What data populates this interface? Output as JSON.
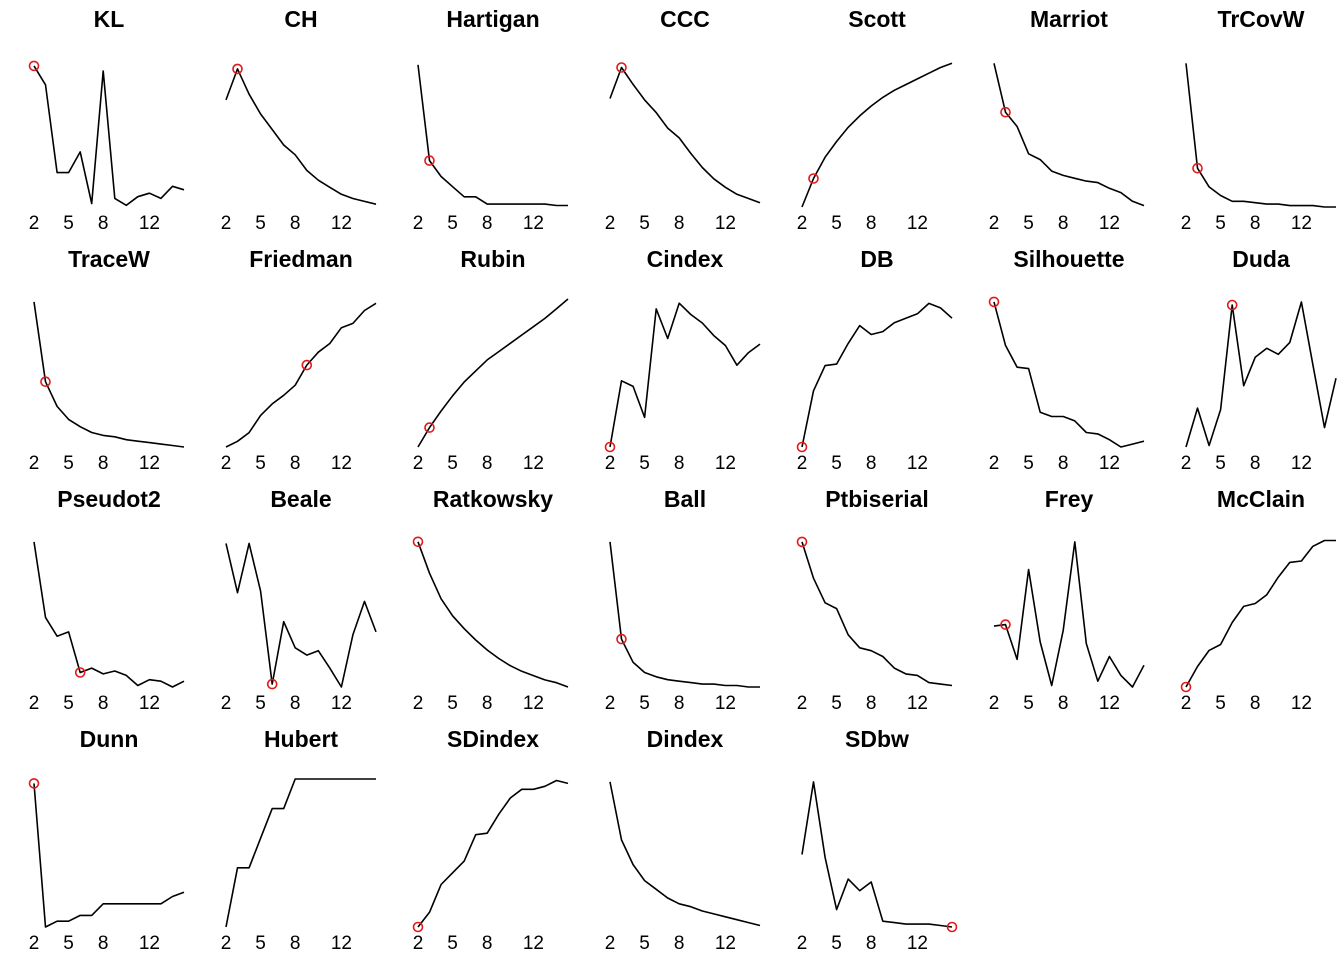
{
  "chart_data": [
    {
      "type": "line",
      "title": "KL",
      "x": [
        2,
        3,
        4,
        5,
        6,
        7,
        8,
        9,
        10,
        11,
        12,
        13,
        14,
        15
      ],
      "values": [
        0.82,
        0.71,
        0.2,
        0.2,
        0.32,
        0.02,
        0.79,
        0.05,
        0.01,
        0.06,
        0.08,
        0.05,
        0.12,
        0.1
      ],
      "ylim": [
        0,
        0.86
      ],
      "xticks": [
        2,
        5,
        8,
        12
      ],
      "highlight_x": 2,
      "highlight_color": "#e31a1c",
      "line_color": "#000000"
    },
    {
      "type": "line",
      "title": "CH",
      "x": [
        2,
        3,
        4,
        5,
        6,
        7,
        8,
        9,
        10,
        11,
        12,
        13,
        14,
        15
      ],
      "values": [
        0.76,
        0.98,
        0.8,
        0.66,
        0.55,
        0.44,
        0.37,
        0.26,
        0.19,
        0.14,
        0.09,
        0.06,
        0.04,
        0.02
      ],
      "ylim": [
        0,
        1.05
      ],
      "xticks": [
        2,
        5,
        8,
        12
      ],
      "highlight_x": 3,
      "highlight_color": "#e31a1c",
      "line_color": "#000000"
    },
    {
      "type": "line",
      "title": "Hartigan",
      "x": [
        2,
        3,
        4,
        5,
        6,
        7,
        8,
        9,
        10,
        11,
        12,
        13,
        14,
        15
      ],
      "values": [
        0.98,
        0.32,
        0.21,
        0.14,
        0.07,
        0.07,
        0.02,
        0.02,
        0.02,
        0.02,
        0.02,
        0.02,
        0.01,
        0.01
      ],
      "ylim": [
        0,
        1.02
      ],
      "xticks": [
        2,
        5,
        8,
        12
      ],
      "highlight_x": 3,
      "highlight_color": "#e31a1c",
      "line_color": "#000000"
    },
    {
      "type": "line",
      "title": "CCC",
      "x": [
        2,
        3,
        4,
        5,
        6,
        7,
        8,
        9,
        10,
        11,
        12,
        13,
        14,
        15
      ],
      "values": [
        0.77,
        0.99,
        0.87,
        0.76,
        0.67,
        0.56,
        0.49,
        0.38,
        0.28,
        0.2,
        0.14,
        0.09,
        0.06,
        0.03
      ],
      "ylim": [
        0,
        1.05
      ],
      "xticks": [
        2,
        5,
        8,
        12
      ],
      "highlight_x": 3,
      "highlight_color": "#e31a1c",
      "line_color": "#000000"
    },
    {
      "type": "line",
      "title": "Scott",
      "x": [
        2,
        3,
        4,
        5,
        6,
        7,
        8,
        9,
        10,
        11,
        12,
        13,
        14,
        15
      ],
      "values": [
        0.0,
        0.2,
        0.35,
        0.46,
        0.56,
        0.64,
        0.71,
        0.77,
        0.82,
        0.86,
        0.9,
        0.94,
        0.98,
        1.01
      ],
      "ylim": [
        0,
        1.04
      ],
      "xticks": [
        2,
        5,
        8,
        12
      ],
      "highlight_x": 3,
      "highlight_color": "#e31a1c",
      "line_color": "#000000"
    },
    {
      "type": "line",
      "title": "Marriot",
      "x": [
        2,
        3,
        4,
        5,
        6,
        7,
        8,
        9,
        10,
        11,
        12,
        13,
        14,
        15
      ],
      "values": [
        1.0,
        0.66,
        0.56,
        0.37,
        0.33,
        0.25,
        0.22,
        0.2,
        0.18,
        0.17,
        0.13,
        0.1,
        0.04,
        0.01
      ],
      "ylim": [
        0,
        1.03
      ],
      "xticks": [
        2,
        5,
        8,
        12
      ],
      "highlight_x": 3,
      "highlight_color": "#e31a1c",
      "line_color": "#000000"
    },
    {
      "type": "line",
      "title": "TrCovW",
      "x": [
        2,
        3,
        4,
        5,
        6,
        7,
        8,
        9,
        10,
        11,
        12,
        13,
        14,
        15
      ],
      "values": [
        1.0,
        0.27,
        0.14,
        0.08,
        0.04,
        0.04,
        0.03,
        0.02,
        0.02,
        0.01,
        0.01,
        0.01,
        0.0,
        0.0
      ],
      "ylim": [
        0,
        1.03
      ],
      "xticks": [
        2,
        5,
        8,
        12
      ],
      "highlight_x": 3,
      "highlight_color": "#e31a1c",
      "line_color": "#000000"
    },
    {
      "type": "line",
      "title": "TraceW",
      "x": [
        2,
        3,
        4,
        5,
        6,
        7,
        8,
        9,
        10,
        11,
        12,
        13,
        14,
        15
      ],
      "values": [
        1.0,
        0.45,
        0.28,
        0.19,
        0.14,
        0.1,
        0.08,
        0.07,
        0.05,
        0.04,
        0.03,
        0.02,
        0.01,
        0.0
      ],
      "ylim": [
        0,
        1.02
      ],
      "xticks": [
        2,
        5,
        8,
        12
      ],
      "highlight_x": 3,
      "highlight_color": "#e31a1c",
      "line_color": "#000000"
    },
    {
      "type": "line",
      "title": "Friedman",
      "x": [
        2,
        3,
        4,
        5,
        6,
        7,
        8,
        9,
        10,
        11,
        12,
        13,
        14,
        15
      ],
      "values": [
        0.0,
        0.04,
        0.1,
        0.22,
        0.3,
        0.36,
        0.43,
        0.57,
        0.66,
        0.72,
        0.83,
        0.86,
        0.95,
        1.0
      ],
      "ylim": [
        0,
        1.03
      ],
      "xticks": [
        2,
        5,
        8,
        12
      ],
      "highlight_x": 9,
      "highlight_color": "#e31a1c",
      "line_color": "#000000"
    },
    {
      "type": "line",
      "title": "Rubin",
      "x": [
        2,
        3,
        4,
        5,
        6,
        7,
        8,
        9,
        10,
        11,
        12,
        13,
        14,
        15
      ],
      "values": [
        0.0,
        0.14,
        0.26,
        0.37,
        0.47,
        0.55,
        0.63,
        0.69,
        0.75,
        0.81,
        0.87,
        0.93,
        1.0,
        1.07
      ],
      "ylim": [
        0,
        1.07
      ],
      "xticks": [
        2,
        5,
        8,
        12
      ],
      "highlight_x": 3,
      "highlight_color": "#e31a1c",
      "line_color": "#000000"
    },
    {
      "type": "line",
      "title": "Cindex",
      "x": [
        2,
        3,
        4,
        5,
        6,
        7,
        8,
        9,
        10,
        11,
        12,
        13,
        14,
        15
      ],
      "values": [
        0.0,
        0.47,
        0.43,
        0.21,
        0.98,
        0.77,
        1.02,
        0.94,
        0.88,
        0.79,
        0.72,
        0.58,
        0.67,
        0.73
      ],
      "ylim": [
        0,
        1.05
      ],
      "xticks": [
        2,
        5,
        8,
        12
      ],
      "highlight_x": 2,
      "highlight_color": "#e31a1c",
      "line_color": "#000000"
    },
    {
      "type": "line",
      "title": "DB",
      "x": [
        2,
        3,
        4,
        5,
        6,
        7,
        8,
        9,
        10,
        11,
        12,
        13,
        14,
        15
      ],
      "values": [
        0.0,
        0.38,
        0.55,
        0.56,
        0.7,
        0.82,
        0.76,
        0.78,
        0.84,
        0.87,
        0.9,
        0.97,
        0.94,
        0.87
      ],
      "ylim": [
        0,
        1.0
      ],
      "xticks": [
        2,
        5,
        8,
        12
      ],
      "highlight_x": 2,
      "highlight_color": "#e31a1c",
      "line_color": "#000000"
    },
    {
      "type": "line",
      "title": "Silhouette",
      "x": [
        2,
        3,
        4,
        5,
        6,
        7,
        8,
        9,
        10,
        11,
        12,
        13,
        14,
        15
      ],
      "values": [
        1.0,
        0.7,
        0.55,
        0.54,
        0.24,
        0.21,
        0.21,
        0.18,
        0.1,
        0.09,
        0.05,
        0.0,
        0.02,
        0.04
      ],
      "ylim": [
        0,
        1.02
      ],
      "xticks": [
        2,
        5,
        8,
        12
      ],
      "highlight_x": 2,
      "highlight_color": "#e31a1c",
      "line_color": "#000000"
    },
    {
      "type": "line",
      "title": "Duda",
      "x": [
        2,
        3,
        4,
        5,
        6,
        7,
        8,
        9,
        10,
        11,
        12,
        13,
        14,
        15
      ],
      "values": [
        0.0,
        0.26,
        0.01,
        0.25,
        0.95,
        0.41,
        0.6,
        0.66,
        0.62,
        0.7,
        0.97,
        0.55,
        0.13,
        0.46
      ],
      "ylim": [
        0,
        0.99
      ],
      "xticks": [
        2,
        5,
        8,
        12
      ],
      "highlight_x": 6,
      "highlight_color": "#e31a1c",
      "line_color": "#000000"
    },
    {
      "type": "line",
      "title": "Pseudot2",
      "x": [
        2,
        3,
        4,
        5,
        6,
        7,
        8,
        9,
        10,
        11,
        12,
        13,
        14,
        15
      ],
      "values": [
        1.0,
        0.48,
        0.35,
        0.38,
        0.1,
        0.13,
        0.09,
        0.11,
        0.08,
        0.01,
        0.05,
        0.04,
        0.0,
        0.04
      ],
      "ylim": [
        0,
        1.02
      ],
      "xticks": [
        2,
        5,
        8,
        12
      ],
      "highlight_x": 6,
      "highlight_color": "#e31a1c",
      "line_color": "#000000"
    },
    {
      "type": "line",
      "title": "Beale",
      "x": [
        2,
        3,
        4,
        5,
        6,
        7,
        8,
        9,
        10,
        11,
        12,
        13,
        14,
        15
      ],
      "values": [
        0.99,
        0.65,
        0.99,
        0.66,
        0.02,
        0.45,
        0.27,
        0.22,
        0.25,
        0.13,
        0.0,
        0.36,
        0.59,
        0.38
      ],
      "ylim": [
        0,
        1.02
      ],
      "xticks": [
        2,
        5,
        8,
        12
      ],
      "highlight_x": 6,
      "highlight_color": "#e31a1c",
      "line_color": "#000000"
    },
    {
      "type": "line",
      "title": "Ratkowsky",
      "x": [
        2,
        3,
        4,
        5,
        6,
        7,
        8,
        9,
        10,
        11,
        12,
        13,
        14,
        15
      ],
      "values": [
        1.0,
        0.78,
        0.6,
        0.48,
        0.39,
        0.31,
        0.24,
        0.18,
        0.13,
        0.09,
        0.06,
        0.03,
        0.01,
        -0.02
      ],
      "ylim": [
        -0.02,
        1.02
      ],
      "xticks": [
        2,
        5,
        8,
        12
      ],
      "highlight_x": 2,
      "highlight_color": "#e31a1c",
      "line_color": "#000000"
    },
    {
      "type": "line",
      "title": "Ball",
      "x": [
        2,
        3,
        4,
        5,
        6,
        7,
        8,
        9,
        10,
        11,
        12,
        13,
        14,
        15
      ],
      "values": [
        1.0,
        0.33,
        0.17,
        0.1,
        0.07,
        0.05,
        0.04,
        0.03,
        0.02,
        0.02,
        0.01,
        0.01,
        0.0,
        0.0
      ],
      "ylim": [
        0,
        1.02
      ],
      "xticks": [
        2,
        5,
        8,
        12
      ],
      "highlight_x": 3,
      "highlight_color": "#e31a1c",
      "line_color": "#000000"
    },
    {
      "type": "line",
      "title": "Ptbiserial",
      "x": [
        2,
        3,
        4,
        5,
        6,
        7,
        8,
        9,
        10,
        11,
        12,
        13,
        14,
        15
      ],
      "values": [
        1.0,
        0.75,
        0.58,
        0.54,
        0.36,
        0.27,
        0.25,
        0.21,
        0.13,
        0.09,
        0.08,
        0.03,
        0.02,
        0.01
      ],
      "ylim": [
        0,
        1.02
      ],
      "xticks": [
        2,
        5,
        8,
        12
      ],
      "highlight_x": 2,
      "highlight_color": "#e31a1c",
      "line_color": "#000000"
    },
    {
      "type": "line",
      "title": "Frey",
      "x": [
        2,
        3,
        4,
        5,
        6,
        7,
        8,
        9,
        10,
        11,
        12,
        13,
        14,
        15
      ],
      "values": [
        0.42,
        0.43,
        0.19,
        0.81,
        0.31,
        0.01,
        0.39,
        1.0,
        0.3,
        0.04,
        0.21,
        0.08,
        0.0,
        0.15
      ],
      "ylim": [
        0,
        1.02
      ],
      "xticks": [
        2,
        5,
        8,
        12
      ],
      "highlight_x": 3,
      "highlight_color": "#e31a1c",
      "line_color": "#000000"
    },
    {
      "type": "line",
      "title": "McClain",
      "x": [
        2,
        3,
        4,
        5,
        6,
        7,
        8,
        9,
        10,
        11,
        12,
        13,
        14,
        15
      ],
      "values": [
        0.0,
        0.14,
        0.25,
        0.29,
        0.44,
        0.55,
        0.57,
        0.63,
        0.75,
        0.85,
        0.86,
        0.96,
        1.0,
        1.0
      ],
      "ylim": [
        0,
        1.01
      ],
      "xticks": [
        2,
        5,
        8,
        12
      ],
      "highlight_x": 2,
      "highlight_color": "#e31a1c",
      "line_color": "#000000"
    },
    {
      "type": "line",
      "title": "Dunn",
      "x": [
        2,
        3,
        4,
        5,
        6,
        7,
        8,
        9,
        10,
        11,
        12,
        13,
        14,
        15
      ],
      "values": [
        0.99,
        0.0,
        0.04,
        0.04,
        0.08,
        0.08,
        0.16,
        0.16,
        0.16,
        0.16,
        0.16,
        0.16,
        0.21,
        0.24
      ],
      "ylim": [
        0,
        1.02
      ],
      "xticks": [
        2,
        5,
        8,
        12
      ],
      "highlight_x": 2,
      "highlight_color": "#e31a1c",
      "line_color": "#000000"
    },
    {
      "type": "line",
      "title": "Hubert",
      "x": [
        2,
        3,
        4,
        5,
        6,
        7,
        8,
        9,
        10,
        11,
        12,
        13,
        14,
        15
      ],
      "values": [
        0.0,
        0.4,
        0.4,
        0.6,
        0.8,
        0.8,
        1.0,
        1.0,
        1.0,
        1.0,
        1.0,
        1.0,
        1.0,
        1.0
      ],
      "ylim": [
        0,
        1.0
      ],
      "xticks": [
        2,
        5,
        8,
        12
      ],
      "line_color": "#000000"
    },
    {
      "type": "line",
      "title": "SDindex",
      "x": [
        2,
        3,
        4,
        5,
        6,
        7,
        8,
        9,
        10,
        11,
        12,
        13,
        14,
        15
      ],
      "values": [
        0.0,
        0.1,
        0.29,
        0.37,
        0.45,
        0.63,
        0.64,
        0.77,
        0.88,
        0.94,
        0.94,
        0.96,
        1.0,
        0.98
      ],
      "ylim": [
        0,
        1.01
      ],
      "xticks": [
        2,
        5,
        8,
        12
      ],
      "highlight_x": 2,
      "highlight_color": "#e31a1c",
      "line_color": "#000000"
    },
    {
      "type": "line",
      "title": "Dindex",
      "x": [
        2,
        3,
        4,
        5,
        6,
        7,
        8,
        9,
        10,
        11,
        12,
        13,
        14,
        15
      ],
      "values": [
        1.0,
        0.6,
        0.43,
        0.32,
        0.26,
        0.2,
        0.16,
        0.14,
        0.11,
        0.09,
        0.07,
        0.05,
        0.03,
        0.01
      ],
      "ylim": [
        0,
        1.02
      ],
      "xticks": [
        2,
        5,
        8,
        12
      ],
      "line_color": "#000000"
    },
    {
      "type": "line",
      "title": "SDbw",
      "x": [
        2,
        3,
        4,
        5,
        6,
        7,
        8,
        9,
        10,
        11,
        12,
        13,
        14,
        15
      ],
      "values": [
        0.5,
        1.0,
        0.48,
        0.12,
        0.33,
        0.25,
        0.31,
        0.04,
        0.03,
        0.02,
        0.02,
        0.02,
        0.01,
        0.0
      ],
      "ylim": [
        0,
        1.02
      ],
      "xticks": [
        2,
        5,
        8,
        12
      ],
      "highlight_x": 15,
      "highlight_color": "#e31a1c",
      "line_color": "#000000"
    }
  ]
}
